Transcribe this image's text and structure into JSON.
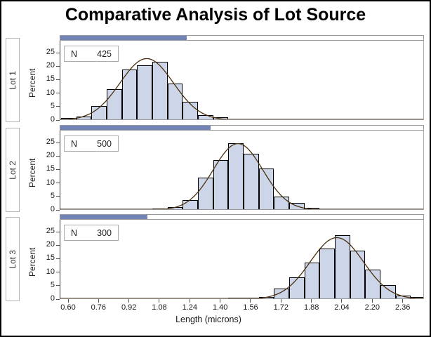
{
  "title": "Comparative Analysis of Lot Source",
  "x_axis": {
    "label": "Length (microns)",
    "ticks": [
      "0.60",
      "0.76",
      "0.92",
      "1.08",
      "1.24",
      "1.40",
      "1.56",
      "1.72",
      "1.88",
      "2.04",
      "2.20",
      "2.36"
    ]
  },
  "y_axis": {
    "label": "Percent",
    "ticks": [
      0,
      5,
      10,
      15,
      20,
      25
    ]
  },
  "colors": {
    "bar_fill": "#ccd6e8",
    "bar_border": "#000000",
    "curve": "#4a2f10",
    "strip_fill": "#7283b6",
    "strip_border": "#999999",
    "axis_line": "#333333",
    "frame_line": "#9a9a9a",
    "text": "#1a1a1a",
    "lot_box_border": "#b5b5b5"
  },
  "chart_data": [
    {
      "type": "bar",
      "subtype": "histogram",
      "group_label": "Lot 1",
      "n_label": "N",
      "n": 425,
      "bin_width": 0.08,
      "bin_midpoints": [
        0.6,
        0.68,
        0.76,
        0.84,
        0.92,
        1.0,
        1.08,
        1.16,
        1.24,
        1.32,
        1.4
      ],
      "percents": [
        0.5,
        1.1,
        5.0,
        11.3,
        18.5,
        20.0,
        21.3,
        13.3,
        6.6,
        1.5,
        0.7
      ],
      "normal_curve": {
        "mean": 1.01,
        "sigma": 0.14,
        "peak_pct": 22.8
      },
      "ylabel": "Percent",
      "ylim": [
        0,
        29
      ],
      "yticks": [
        0,
        5,
        10,
        15,
        20,
        25
      ],
      "strip_fill_fraction": 0.347
    },
    {
      "type": "bar",
      "subtype": "histogram",
      "group_label": "Lot 2",
      "n_label": "N",
      "n": 500,
      "bin_width": 0.08,
      "bin_midpoints": [
        1.08,
        1.16,
        1.24,
        1.32,
        1.4,
        1.48,
        1.56,
        1.64,
        1.72,
        1.8,
        1.88
      ],
      "percents": [
        0.2,
        0.7,
        3.3,
        11.8,
        18.3,
        24.6,
        20.6,
        15.0,
        4.7,
        2.3,
        0.4
      ],
      "normal_curve": {
        "mean": 1.49,
        "sigma": 0.13,
        "peak_pct": 24.6
      },
      "ylabel": "Percent",
      "ylim": [
        0,
        29
      ],
      "yticks": [
        0,
        5,
        10,
        15,
        20,
        25
      ],
      "strip_fill_fraction": 0.412
    },
    {
      "type": "bar",
      "subtype": "histogram",
      "group_label": "Lot 3",
      "n_label": "N",
      "n": 300,
      "bin_width": 0.08,
      "bin_midpoints": [
        1.48,
        1.56,
        1.64,
        1.72,
        1.8,
        1.88,
        1.96,
        2.04,
        2.12,
        2.2,
        2.28,
        2.36,
        2.44
      ],
      "percents": [
        0.2,
        0.3,
        0.4,
        3.6,
        7.7,
        13.3,
        18.6,
        23.4,
        17.8,
        10.8,
        4.9,
        1.0,
        0.5
      ],
      "normal_curve": {
        "mean": 2.01,
        "sigma": 0.14,
        "peak_pct": 22.8
      },
      "ylabel": "Percent",
      "ylim": [
        0,
        29
      ],
      "yticks": [
        0,
        5,
        10,
        15,
        20,
        25
      ],
      "strip_fill_fraction": 0.239
    }
  ],
  "shared_xlabel": "Length (microns)"
}
